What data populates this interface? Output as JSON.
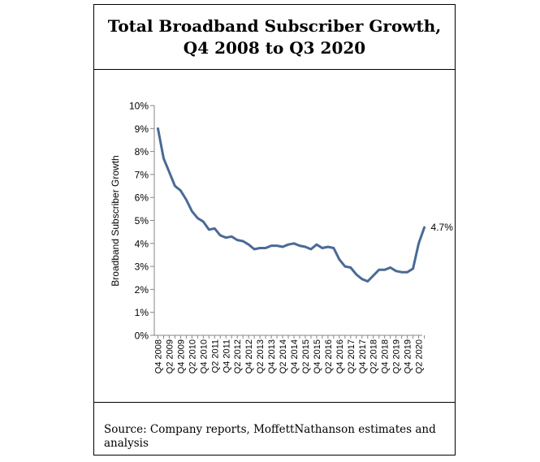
{
  "title": {
    "line1": "Total Broadband Subscriber Growth,",
    "line2": "Q4 2008 to Q3 2020"
  },
  "source": "Source: Company reports, MoffettNathanson estimates and analysis",
  "chart_data": {
    "type": "line",
    "title": "Total Broadband Subscriber Growth, Q4 2008 to Q3 2020",
    "xlabel": "",
    "ylabel": "Broadband Subscriber Growth",
    "ylim": [
      0,
      10
    ],
    "y_ticks": [
      "0%",
      "1%",
      "2%",
      "3%",
      "4%",
      "5%",
      "6%",
      "7%",
      "8%",
      "9%",
      "10%"
    ],
    "x_tick_labels": [
      "Q4 2008",
      "Q2 2009",
      "Q4 2009",
      "Q2 2010",
      "Q4 2010",
      "Q2 2011",
      "Q4 2011",
      "Q2 2012",
      "Q4 2012",
      "Q2 2013",
      "Q4 2013",
      "Q2 2014",
      "Q4 2014",
      "Q2 2015",
      "Q4 2015",
      "Q2 2016",
      "Q4 2016",
      "Q2 2017",
      "Q4 2017",
      "Q2 2018",
      "Q4 2018",
      "Q2 2019",
      "Q4 2019",
      "Q2 2020"
    ],
    "x": [
      "Q4 2008",
      "Q1 2009",
      "Q2 2009",
      "Q3 2009",
      "Q4 2009",
      "Q1 2010",
      "Q2 2010",
      "Q3 2010",
      "Q4 2010",
      "Q1 2011",
      "Q2 2011",
      "Q3 2011",
      "Q4 2011",
      "Q1 2012",
      "Q2 2012",
      "Q3 2012",
      "Q4 2012",
      "Q1 2013",
      "Q2 2013",
      "Q3 2013",
      "Q4 2013",
      "Q1 2014",
      "Q2 2014",
      "Q3 2014",
      "Q4 2014",
      "Q1 2015",
      "Q2 2015",
      "Q3 2015",
      "Q4 2015",
      "Q1 2016",
      "Q2 2016",
      "Q3 2016",
      "Q4 2016",
      "Q1 2017",
      "Q2 2017",
      "Q3 2017",
      "Q4 2017",
      "Q1 2018",
      "Q2 2018",
      "Q3 2018",
      "Q4 2018",
      "Q1 2019",
      "Q2 2019",
      "Q3 2019",
      "Q4 2019",
      "Q1 2020",
      "Q2 2020",
      "Q3 2020"
    ],
    "series": [
      {
        "name": "",
        "color": "#4a6a96",
        "values": [
          9.0,
          7.7,
          7.1,
          6.5,
          6.3,
          5.9,
          5.4,
          5.1,
          4.95,
          4.6,
          4.65,
          4.35,
          4.25,
          4.3,
          4.15,
          4.1,
          3.95,
          3.75,
          3.8,
          3.8,
          3.9,
          3.9,
          3.85,
          3.95,
          4.0,
          3.9,
          3.85,
          3.75,
          3.95,
          3.8,
          3.85,
          3.8,
          3.3,
          3.0,
          2.95,
          2.65,
          2.45,
          2.35,
          2.6,
          2.85,
          2.85,
          2.95,
          2.8,
          2.75,
          2.75,
          2.9,
          4.0,
          4.7
        ]
      }
    ],
    "annotations": [
      {
        "text": "4.7%",
        "x": "Q3 2020",
        "y": 4.7
      }
    ],
    "grid": false
  }
}
